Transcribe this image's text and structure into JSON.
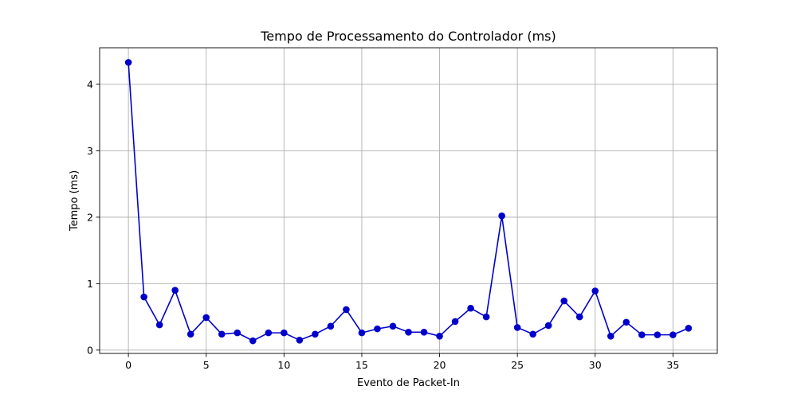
{
  "chart_data": {
    "type": "line",
    "title": "Tempo de Processamento do Controlador (ms)",
    "xlabel": "Evento de Packet-In",
    "ylabel": "Tempo (ms)",
    "xlim": [
      -1.85,
      37.85
    ],
    "ylim": [
      -0.05,
      4.55
    ],
    "xticks": [
      0,
      5,
      10,
      15,
      20,
      25,
      30,
      35
    ],
    "yticks": [
      0,
      1,
      2,
      3,
      4
    ],
    "grid": true,
    "color": "#0000cc",
    "marker": "circle",
    "x": [
      0,
      1,
      2,
      3,
      4,
      5,
      6,
      7,
      8,
      9,
      10,
      11,
      12,
      13,
      14,
      15,
      16,
      17,
      18,
      19,
      20,
      21,
      22,
      23,
      24,
      25,
      26,
      27,
      28,
      29,
      30,
      31,
      32,
      33,
      34,
      35,
      36
    ],
    "y": [
      4.33,
      0.8,
      0.38,
      0.9,
      0.24,
      0.49,
      0.24,
      0.26,
      0.14,
      0.26,
      0.26,
      0.15,
      0.24,
      0.36,
      0.61,
      0.26,
      0.32,
      0.36,
      0.27,
      0.27,
      0.21,
      0.43,
      0.63,
      0.5,
      2.02,
      0.34,
      0.24,
      0.37,
      0.74,
      0.5,
      0.89,
      0.21,
      0.42,
      0.23,
      0.23,
      0.23,
      0.33
    ]
  }
}
